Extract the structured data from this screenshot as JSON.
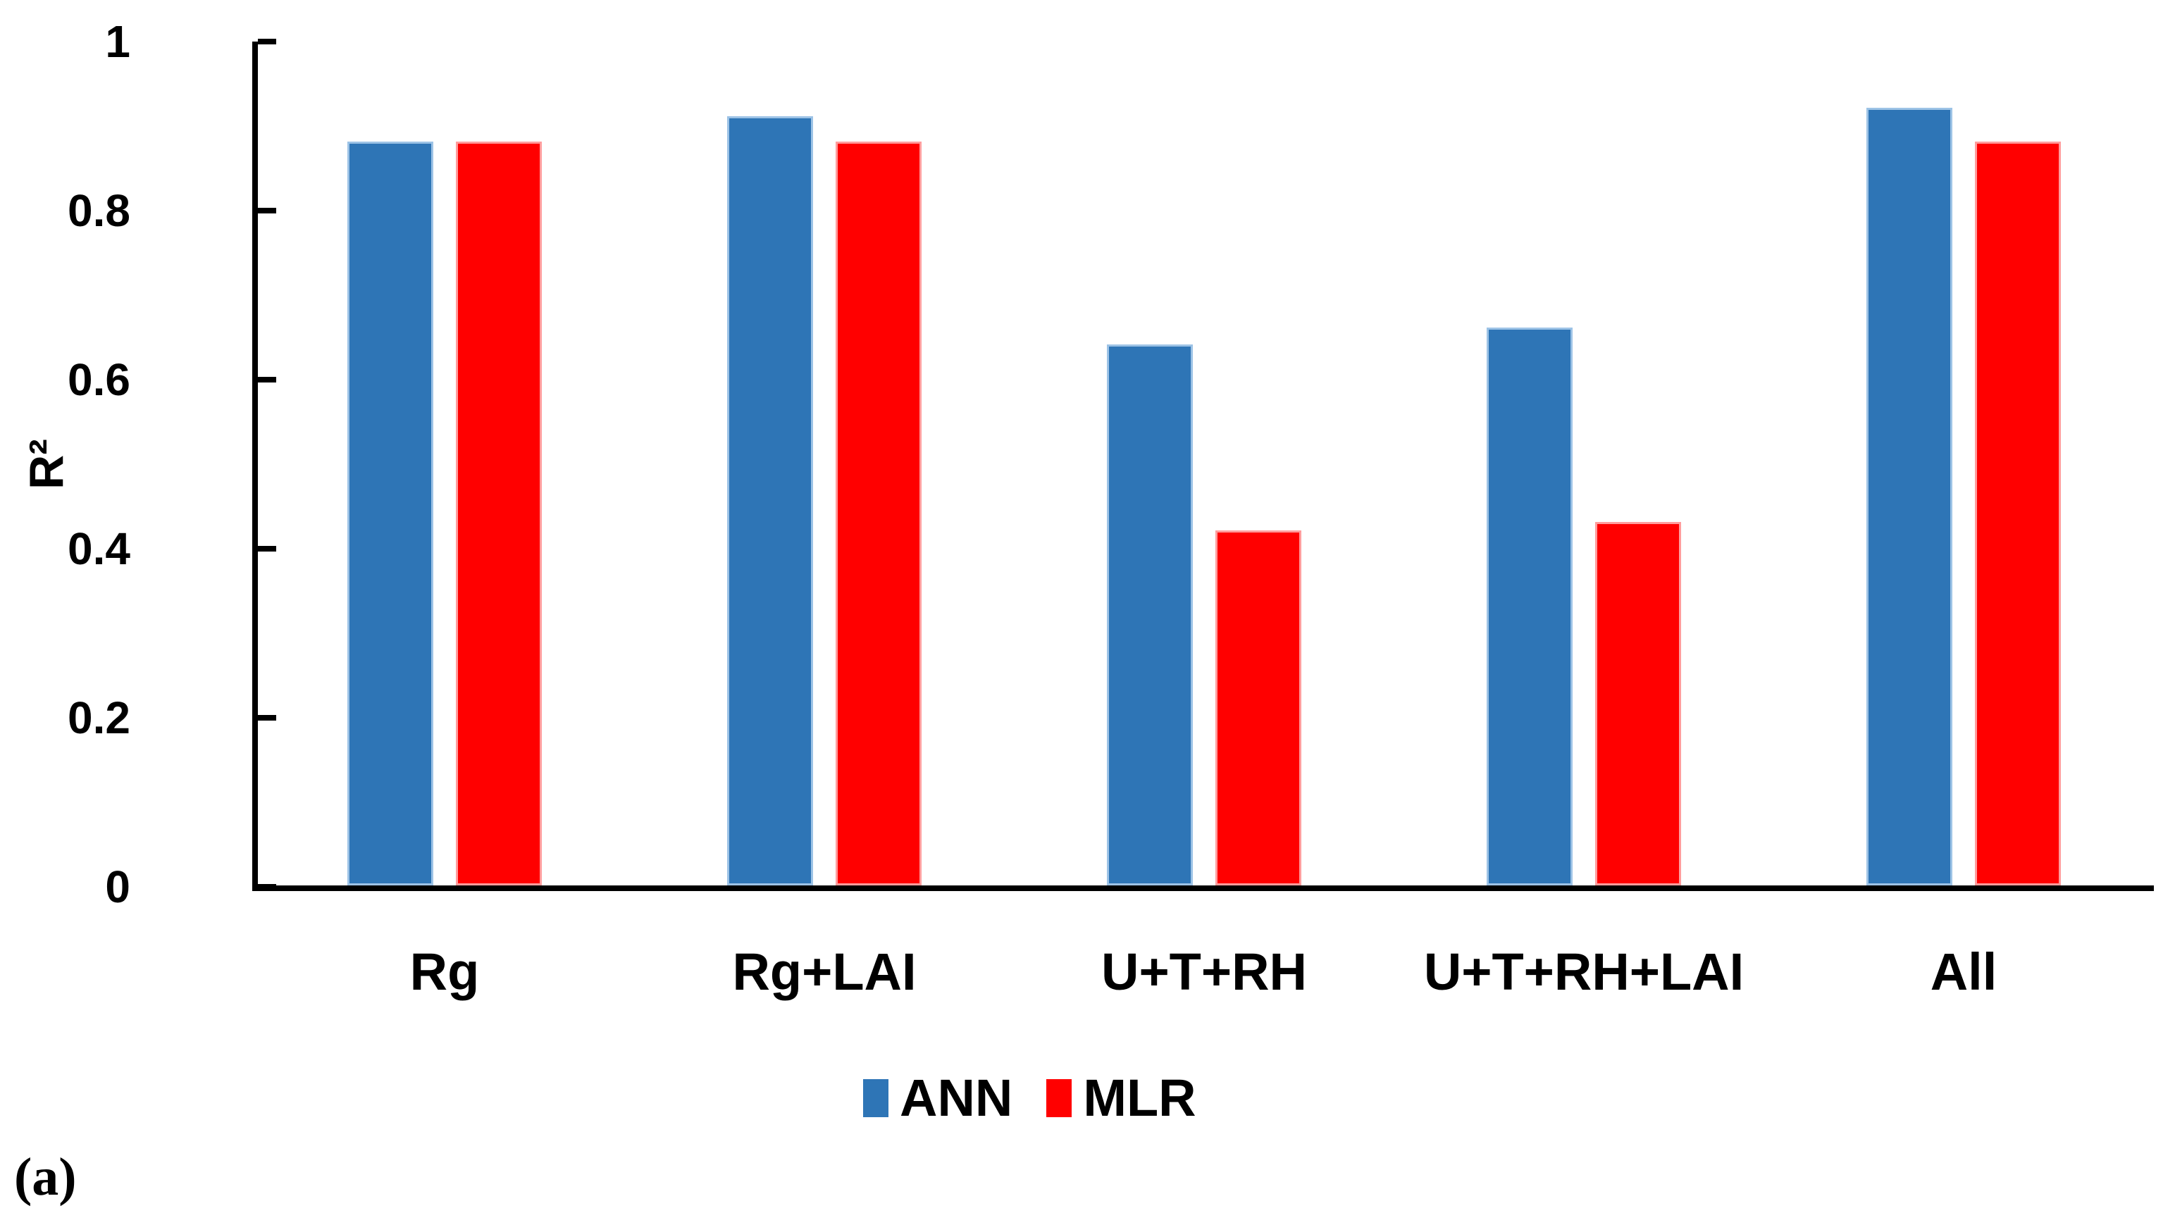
{
  "figure_label": "(a)",
  "chart_data": {
    "type": "bar",
    "title": "",
    "xlabel": "",
    "ylabel": "R²",
    "categories": [
      "Rg",
      "Rg+LAI",
      "U+T+RH",
      "U+T+RH+LAI",
      "All"
    ],
    "series": [
      {
        "name": "ANN",
        "color": "#2E75B6",
        "edge_color": "#9DC3E6",
        "values": [
          0.88,
          0.91,
          0.64,
          0.66,
          0.92
        ]
      },
      {
        "name": "MLR",
        "color": "#FF0000",
        "edge_color": "#FF9D9D",
        "values": [
          0.88,
          0.88,
          0.42,
          0.43,
          0.88
        ]
      }
    ],
    "ylim": [
      0,
      1
    ],
    "yticks": [
      1,
      0.8,
      0.6,
      0.4,
      0.2,
      0
    ],
    "grid": false,
    "legend_position": "bottom-center",
    "axis_color": "#000000",
    "text_color": "#000000",
    "background": "#FFFFFF"
  }
}
